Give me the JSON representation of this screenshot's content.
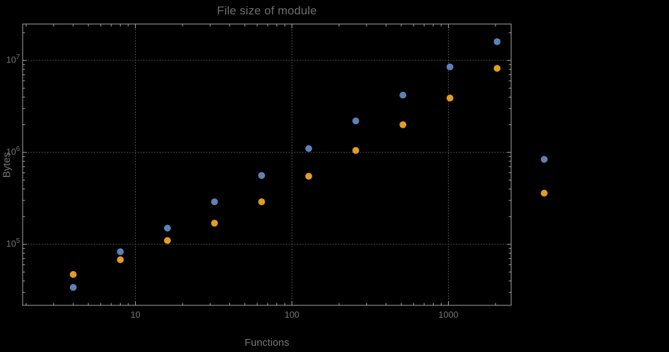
{
  "colors": {
    "background": "#000000",
    "frame": "#a9a9a9",
    "grid": "#5d5d5d",
    "text": "#767676",
    "title": "#6f6f6f",
    "series_blue": "#5E81B5",
    "series_orange": "#E19C24"
  },
  "chart_data": {
    "type": "scatter",
    "title": "File size of module",
    "xlabel": "Functions",
    "ylabel": "Bytes",
    "x_scale": "log",
    "y_scale": "log",
    "xlim": [
      1.9,
      2520
    ],
    "ylim": [
      21700,
      24900000
    ],
    "grid": "dotted gridlines at decade ticks, framed plot with inward ticks on all four edges",
    "plot_range_clipping": false,
    "legend": "none",
    "x_ticks": [
      {
        "value": 10,
        "label": "10"
      },
      {
        "value": 100,
        "label": "100"
      },
      {
        "value": 1000,
        "label": "1000"
      }
    ],
    "y_ticks": [
      {
        "value": 100000,
        "base": "10",
        "exp": "5"
      },
      {
        "value": 1000000,
        "base": "10",
        "exp": "6"
      },
      {
        "value": 10000000,
        "base": "10",
        "exp": "7"
      }
    ],
    "series": [
      {
        "name": "blue",
        "color": "#5E81B5",
        "points": [
          [
            4,
            34000
          ],
          [
            8,
            83000
          ],
          [
            16,
            150000
          ],
          [
            32,
            290000
          ],
          [
            64,
            560000
          ],
          [
            128,
            1100000
          ],
          [
            256,
            2200000
          ],
          [
            512,
            4200000
          ],
          [
            1024,
            8500000
          ],
          [
            2048,
            16000000
          ],
          [
            4096,
            840000
          ]
        ]
      },
      {
        "name": "orange",
        "color": "#E19C24",
        "points": [
          [
            4,
            47000
          ],
          [
            8,
            68000
          ],
          [
            16,
            110000
          ],
          [
            32,
            170000
          ],
          [
            64,
            290000
          ],
          [
            128,
            550000
          ],
          [
            256,
            1050000
          ],
          [
            512,
            2000000
          ],
          [
            1024,
            3900000
          ],
          [
            2048,
            8200000
          ],
          [
            4096,
            360000
          ]
        ]
      }
    ]
  }
}
